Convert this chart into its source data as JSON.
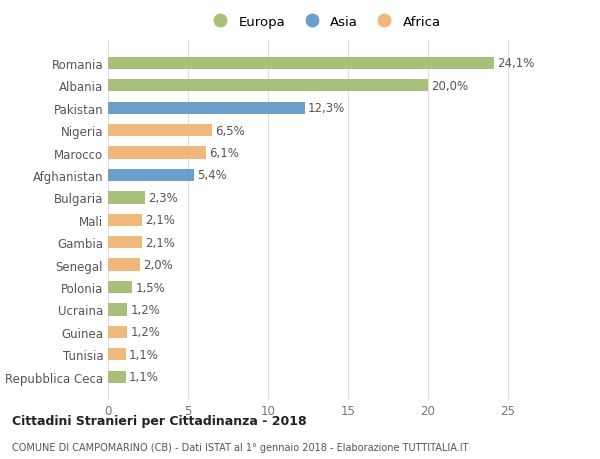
{
  "categories": [
    "Repubblica Ceca",
    "Tunisia",
    "Guinea",
    "Ucraina",
    "Polonia",
    "Senegal",
    "Gambia",
    "Mali",
    "Bulgaria",
    "Afghanistan",
    "Marocco",
    "Nigeria",
    "Pakistan",
    "Albania",
    "Romania"
  ],
  "values": [
    1.1,
    1.1,
    1.2,
    1.2,
    1.5,
    2.0,
    2.1,
    2.1,
    2.3,
    5.4,
    6.1,
    6.5,
    12.3,
    20.0,
    24.1
  ],
  "labels": [
    "1,1%",
    "1,1%",
    "1,2%",
    "1,2%",
    "1,5%",
    "2,0%",
    "2,1%",
    "2,1%",
    "2,3%",
    "5,4%",
    "6,1%",
    "6,5%",
    "12,3%",
    "20,0%",
    "24,1%"
  ],
  "continents": [
    "Europa",
    "Africa",
    "Africa",
    "Europa",
    "Europa",
    "Africa",
    "Africa",
    "Africa",
    "Europa",
    "Asia",
    "Africa",
    "Africa",
    "Asia",
    "Europa",
    "Europa"
  ],
  "colors": {
    "Europa": "#a8c07a",
    "Asia": "#6b9fcc",
    "Africa": "#f0b87a"
  },
  "legend_labels": [
    "Europa",
    "Asia",
    "Africa"
  ],
  "xlim": [
    0,
    27
  ],
  "xticks": [
    0,
    5,
    10,
    15,
    20,
    25
  ],
  "title1": "Cittadini Stranieri per Cittadinanza - 2018",
  "title2": "COMUNE DI CAMPOMARINO (CB) - Dati ISTAT al 1° gennaio 2018 - Elaborazione TUTTITALIA.IT",
  "background_color": "#ffffff",
  "bar_height": 0.55,
  "label_fontsize": 8.5,
  "tick_fontsize": 8.5,
  "grid_color": "#dddddd"
}
